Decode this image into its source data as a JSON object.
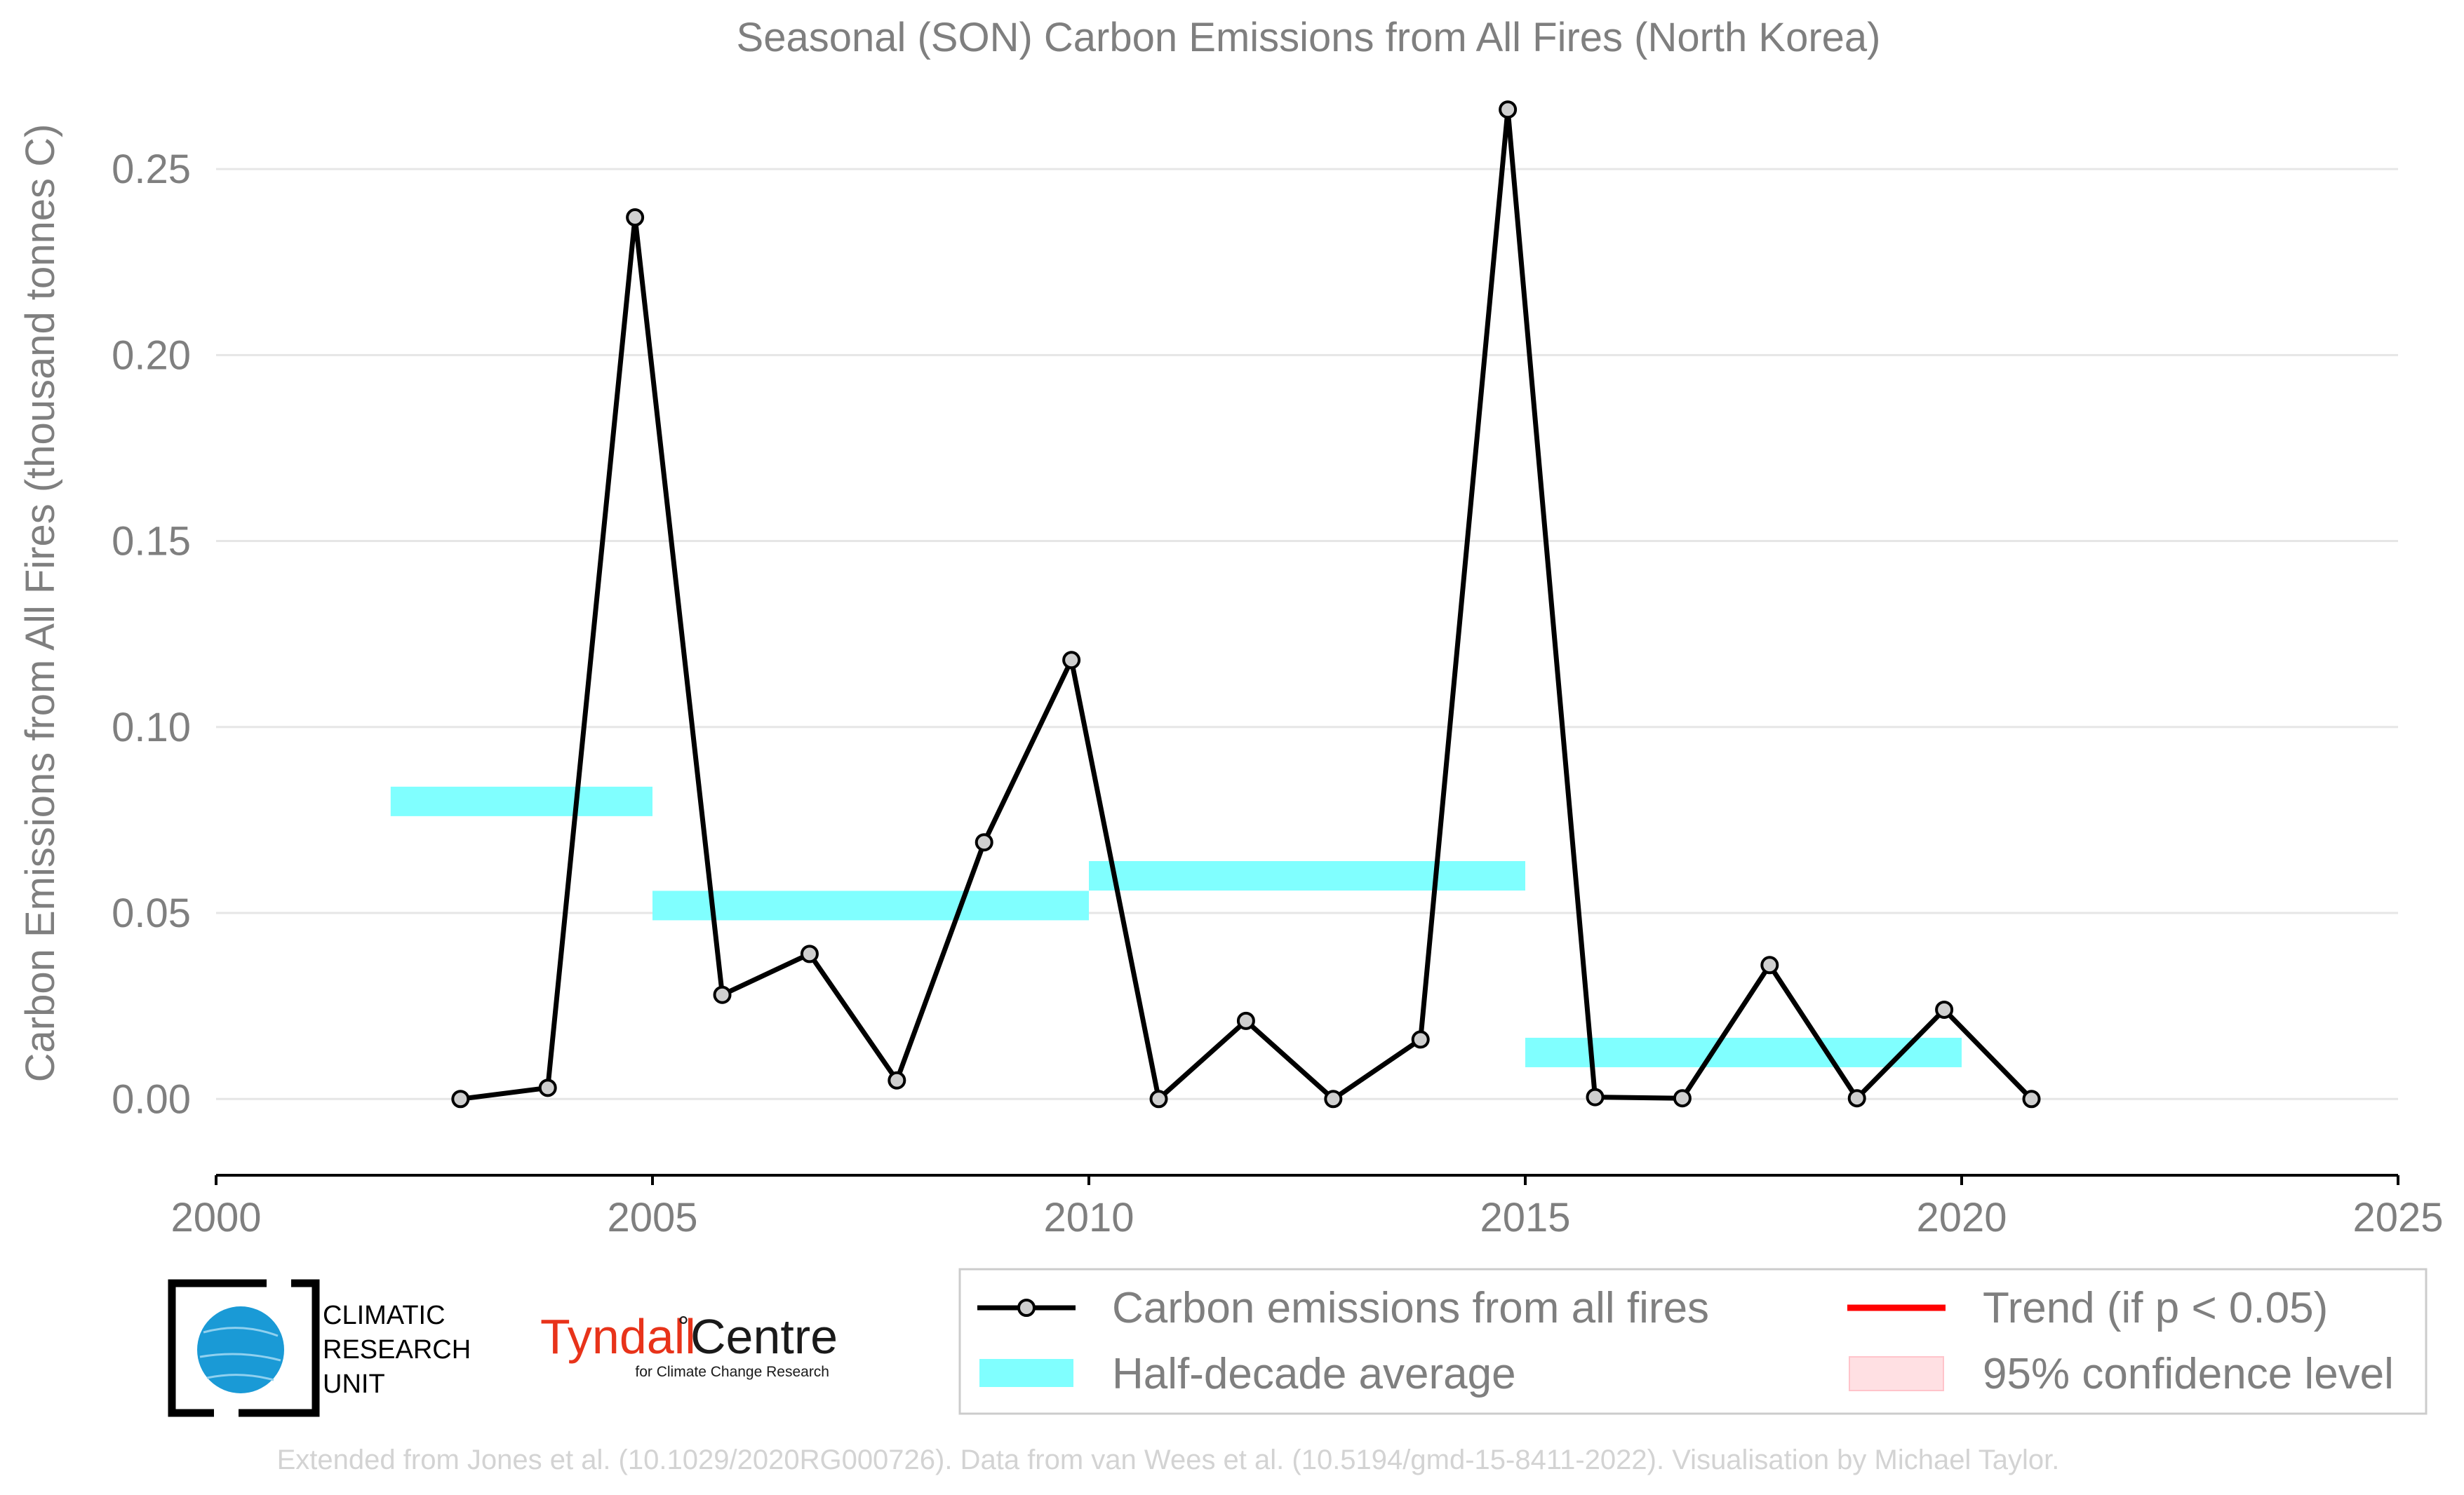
{
  "title": "Seasonal (SON) Carbon Emissions from All Fires (North Korea)",
  "footer": "Extended from Jones et al. (10.1029/2020RG000726). Data from van Wees et al. (10.5194/gmd-15-8411-2022). Visualisation by Michael Taylor.",
  "logos": {
    "cru_line1": "CLIMATIC",
    "cru_line2": "RESEARCH",
    "cru_line3": "UNIT",
    "tyndall_main": "Tyndall",
    "tyndall_degree": "°",
    "tyndall_centre": "Centre",
    "tyndall_sub": "for Climate Change Research"
  },
  "legend": {
    "emissions": "Carbon emissions from all fires",
    "average": "Half-decade average",
    "trend": "Trend (if p < 0.05)",
    "confidence": "95% confidence level"
  },
  "colors": {
    "line": "#000000",
    "marker_fill": "#cfcfcf",
    "half_decade": "#80ffff",
    "trend": "#ff0000",
    "confidence": "#ffe0e3",
    "grid": "#e6e6e6",
    "text": "#7f7f7f"
  },
  "chart_data": {
    "type": "line",
    "title": "Seasonal (SON) Carbon Emissions from All Fires (North Korea)",
    "xlabel": "",
    "ylabel": "Carbon Emissions from All Fires (thousand tonnes C)",
    "xlim": [
      2000,
      2025
    ],
    "ylim": [
      -0.0205,
      0.27
    ],
    "x_ticks": [
      2000,
      2005,
      2010,
      2015,
      2020,
      2025
    ],
    "x_tick_labels": [
      "2000",
      "2005",
      "2010",
      "2015",
      "2020",
      "2025"
    ],
    "y_ticks": [
      0.0,
      0.05,
      0.1,
      0.15,
      0.2,
      0.25
    ],
    "y_tick_labels": [
      "0.00",
      "0.05",
      "0.10",
      "0.15",
      "0.20",
      "0.25"
    ],
    "grid": true,
    "legend_position": "bottom",
    "series": [
      {
        "name": "Carbon emissions from all fires",
        "x": [
          2002.8,
          2003.8,
          2004.8,
          2005.8,
          2006.8,
          2007.8,
          2008.8,
          2009.8,
          2010.8,
          2011.8,
          2012.8,
          2013.8,
          2014.8,
          2015.8,
          2016.8,
          2017.8,
          2018.8,
          2019.8,
          2020.8
        ],
        "y": [
          0.0,
          0.003,
          0.237,
          0.028,
          0.039,
          0.005,
          0.069,
          0.118,
          0.0,
          0.021,
          0.0,
          0.016,
          0.266,
          0.0005,
          0.0002,
          0.036,
          0.0002,
          0.024,
          0.0
        ]
      }
    ],
    "half_decade_average": [
      {
        "x_start": 2002,
        "x_end": 2005,
        "y": 0.08
      },
      {
        "x_start": 2005,
        "x_end": 2010,
        "y": 0.052
      },
      {
        "x_start": 2010,
        "x_end": 2015,
        "y": 0.06
      },
      {
        "x_start": 2015,
        "x_end": 2020,
        "y": 0.0125
      }
    ]
  }
}
